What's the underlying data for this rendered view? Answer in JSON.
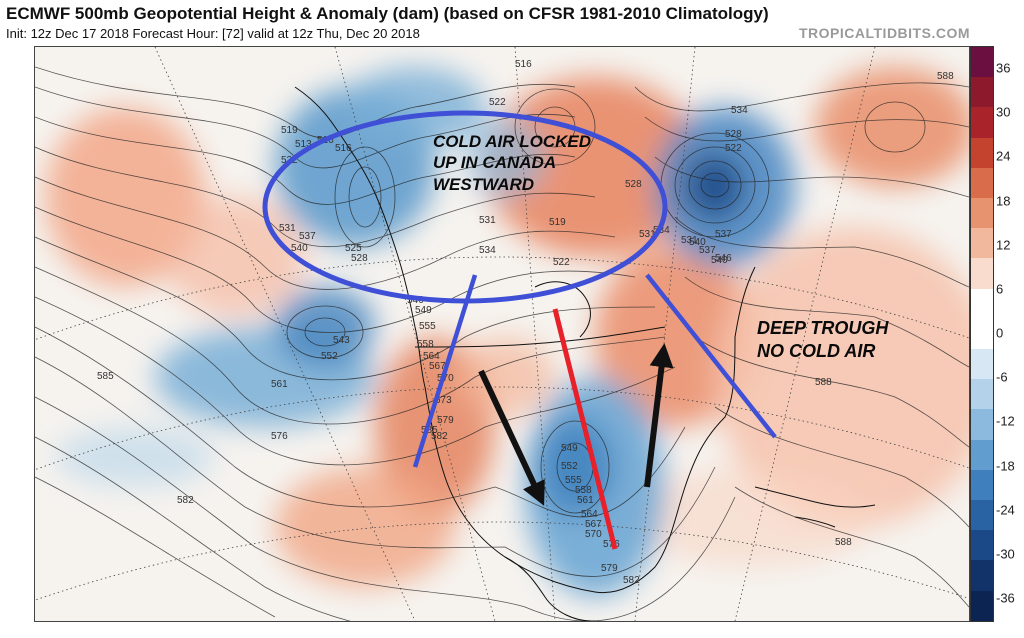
{
  "title": "ECMWF 500mb Geopotential Height & Anomaly (dam) (based on CFSR 1981-2010 Climatology)",
  "subtitle": "Init: 12z Dec 17 2018   Forecast Hour: [72]   valid at 12z Thu, Dec 20 2018",
  "watermark": "TROPICALTIDBITS.COM",
  "colorbar": {
    "ticks": [
      "36",
      "30",
      "24",
      "18",
      "12",
      "6",
      "0",
      "-6",
      "-12",
      "-18",
      "-24",
      "-30",
      "-36"
    ],
    "colors": [
      "#6a0f3f",
      "#8c1a2c",
      "#a8242a",
      "#c4432f",
      "#d96c4a",
      "#e8936f",
      "#f2b89d",
      "#fadcce",
      "#ffffff",
      "#ffffff",
      "#d7e7f3",
      "#b4d3ea",
      "#8cbade",
      "#619ecf",
      "#3f7fbd",
      "#2a63a3",
      "#1b4886",
      "#12326a",
      "#0c2452"
    ],
    "unit": "dam"
  },
  "annotations": {
    "cold_air_line1": "COLD AIR LOCKED",
    "cold_air_line2": "UP IN CANADA",
    "cold_air_line3": "WESTWARD",
    "deep_trough_line1": "DEEP TROUGH",
    "deep_trough_line2": "NO COLD AIR"
  },
  "contour_labels": [
    "519",
    "513",
    "516",
    "522",
    "516",
    "531",
    "537",
    "540",
    "525",
    "528",
    "531",
    "534",
    "519",
    "522",
    "528",
    "534",
    "531",
    "537",
    "540",
    "546",
    "549",
    "555",
    "558",
    "564",
    "567",
    "570",
    "573",
    "579",
    "582",
    "585",
    "552",
    "543",
    "561",
    "576",
    "582",
    "585",
    "549",
    "552",
    "555",
    "558",
    "561",
    "564",
    "567",
    "570",
    "576",
    "579",
    "582",
    "588",
    "588",
    "588",
    "534",
    "528",
    "522",
    "531",
    "537",
    "540",
    "546",
    "516",
    "522"
  ],
  "colors": {
    "warm_anomaly": "#f2a788",
    "cold_anomaly": "#5f9ccc",
    "annotation_blue": "#3f4fd6",
    "annotation_red": "#e8202a",
    "annotation_black": "#111111"
  }
}
